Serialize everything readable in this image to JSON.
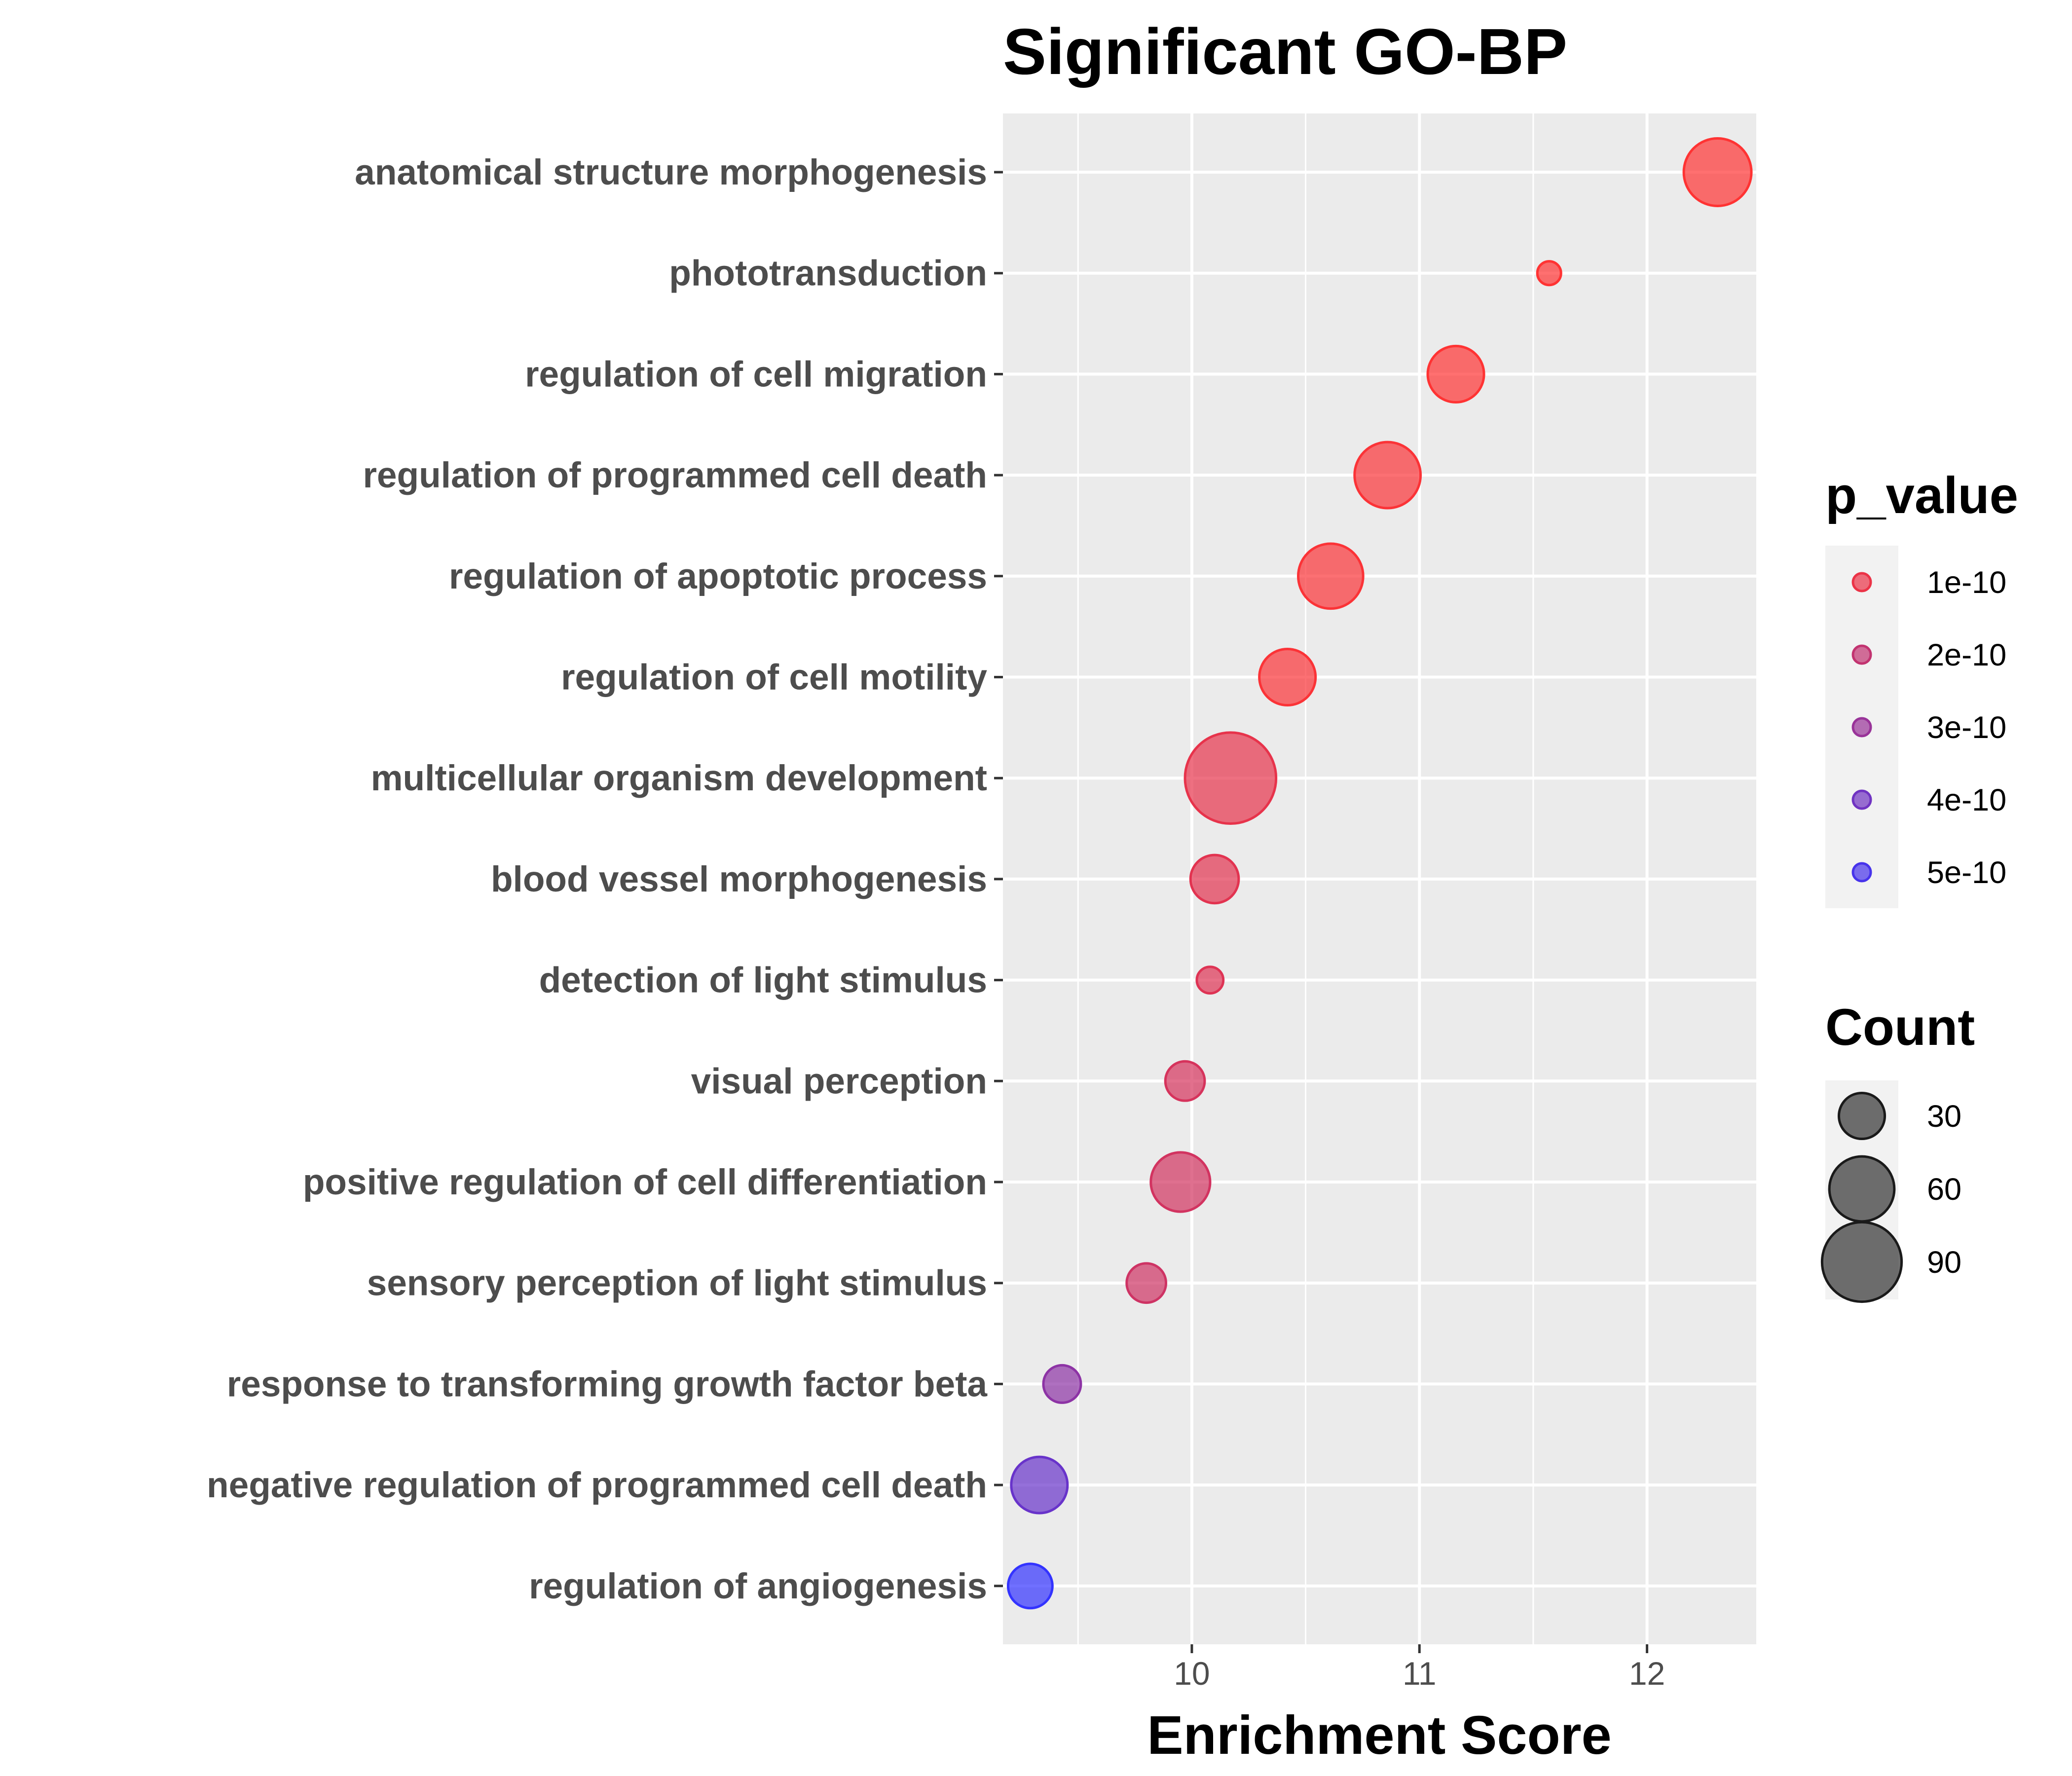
{
  "chart_data": {
    "type": "scatter",
    "title": "Significant GO-BP",
    "xlabel": "Enrichment Score",
    "ylabel": "",
    "xlim": [
      9.17,
      12.48
    ],
    "xticks": [
      10,
      11,
      12
    ],
    "grid": true,
    "colors": {
      "panel_bg": "#ebebeb",
      "grid": "#ffffff",
      "low_p": "#ff3333",
      "high_p": "#3333ff"
    },
    "points": [
      {
        "term": "anatomical structure morphogenesis",
        "x": 12.31,
        "p_value": 5e-11,
        "count": 65
      },
      {
        "term": "phototransduction",
        "x": 11.57,
        "p_value": 5e-11,
        "count": 8
      },
      {
        "term": "regulation of cell migration",
        "x": 11.16,
        "p_value": 5e-11,
        "count": 45
      },
      {
        "term": "regulation of programmed cell death",
        "x": 10.86,
        "p_value": 6e-11,
        "count": 62
      },
      {
        "term": "regulation of apoptotic process",
        "x": 10.61,
        "p_value": 6e-11,
        "count": 60
      },
      {
        "term": "regulation of cell motility",
        "x": 10.42,
        "p_value": 6e-11,
        "count": 45
      },
      {
        "term": "multicellular organism development",
        "x": 10.17,
        "p_value": 1.1e-10,
        "count": 118
      },
      {
        "term": "blood vessel morphogenesis",
        "x": 10.1,
        "p_value": 1.2e-10,
        "count": 33
      },
      {
        "term": "detection of light stimulus",
        "x": 10.08,
        "p_value": 1.3e-10,
        "count": 10
      },
      {
        "term": "visual perception",
        "x": 9.97,
        "p_value": 1.5e-10,
        "count": 22
      },
      {
        "term": "positive regulation of cell differentiation",
        "x": 9.95,
        "p_value": 1.6e-10,
        "count": 50
      },
      {
        "term": "sensory perception of light stimulus",
        "x": 9.8,
        "p_value": 1.7e-10,
        "count": 22
      },
      {
        "term": "response to transforming growth factor beta",
        "x": 9.43,
        "p_value": 3.3e-10,
        "count": 20
      },
      {
        "term": "negative regulation of programmed cell death",
        "x": 9.33,
        "p_value": 4.2e-10,
        "count": 45
      },
      {
        "term": "regulation of angiogenesis",
        "x": 9.29,
        "p_value": 5.5e-10,
        "count": 28
      }
    ],
    "legends": [
      {
        "title": "p_value",
        "entries": [
          {
            "label": "1e-10",
            "p_value": 1e-10
          },
          {
            "label": "2e-10",
            "p_value": 2e-10
          },
          {
            "label": "3e-10",
            "p_value": 3e-10
          },
          {
            "label": "4e-10",
            "p_value": 4e-10
          },
          {
            "label": "5e-10",
            "p_value": 5e-10
          }
        ]
      },
      {
        "title": "Count",
        "entries": [
          {
            "label": "30",
            "count": 30
          },
          {
            "label": "60",
            "count": 60
          },
          {
            "label": "90",
            "count": 90
          }
        ]
      }
    ],
    "legend_position": "right"
  }
}
